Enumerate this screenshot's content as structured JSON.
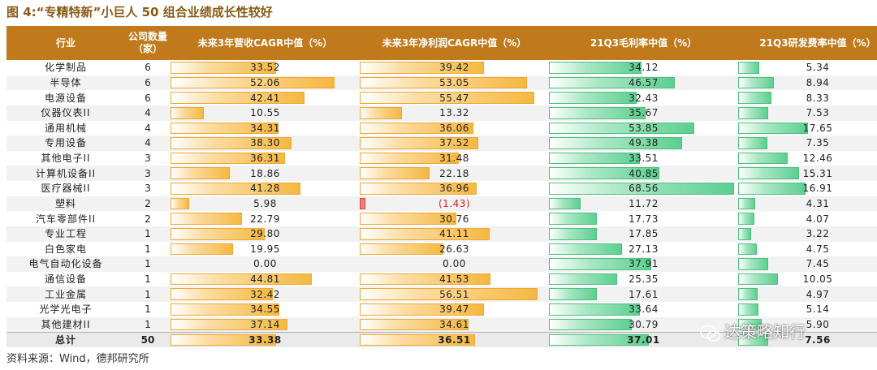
{
  "title": "图 4:“专精特新”小巨人 50 组合业绩成长性较好",
  "headers": [
    "行业",
    "公司数量\n（家）",
    "未来3年营收CAGR中值（%）",
    "未来3年净利润CAGR中值（%）",
    "21Q3毛利率中值（%）",
    "21Q3研发费率中值（%）"
  ],
  "rows": [
    {
      "industry": "化学制品",
      "count": "6",
      "rev": "33.52",
      "np": "39.42",
      "gm": "34.12",
      "rd": "5.34"
    },
    {
      "industry": "半导体",
      "count": "6",
      "rev": "52.06",
      "np": "53.05",
      "gm": "46.57",
      "rd": "8.94"
    },
    {
      "industry": "电源设备",
      "count": "6",
      "rev": "42.41",
      "np": "55.47",
      "gm": "32.43",
      "rd": "8.33"
    },
    {
      "industry": "仪器仪表II",
      "count": "4",
      "rev": "10.55",
      "np": "13.32",
      "gm": "35.67",
      "rd": "7.53"
    },
    {
      "industry": "通用机械",
      "count": "4",
      "rev": "34.31",
      "np": "36.06",
      "gm": "53.85",
      "rd": "17.65"
    },
    {
      "industry": "专用设备",
      "count": "4",
      "rev": "38.30",
      "np": "37.52",
      "gm": "49.38",
      "rd": "7.35"
    },
    {
      "industry": "其他电子II",
      "count": "3",
      "rev": "36.31",
      "np": "31.48",
      "gm": "33.51",
      "rd": "12.46"
    },
    {
      "industry": "计算机设备II",
      "count": "3",
      "rev": "18.86",
      "np": "22.18",
      "gm": "40.85",
      "rd": "15.31"
    },
    {
      "industry": "医疗器械II",
      "count": "3",
      "rev": "41.28",
      "np": "36.96",
      "gm": "68.56",
      "rd": "16.91"
    },
    {
      "industry": "塑料",
      "count": "2",
      "rev": "5.98",
      "np": "(1.43)",
      "gm": "11.72",
      "rd": "4.31"
    },
    {
      "industry": "汽车零部件II",
      "count": "2",
      "rev": "22.79",
      "np": "30.76",
      "gm": "17.73",
      "rd": "4.07"
    },
    {
      "industry": "专业工程",
      "count": "1",
      "rev": "29.80",
      "np": "41.11",
      "gm": "17.85",
      "rd": "3.22"
    },
    {
      "industry": "白色家电",
      "count": "1",
      "rev": "19.95",
      "np": "26.63",
      "gm": "27.13",
      "rd": "4.75"
    },
    {
      "industry": "电气自动化设备",
      "count": "1",
      "rev": "0.00",
      "np": "0.00",
      "gm": "37.91",
      "rd": "7.45"
    },
    {
      "industry": "通信设备",
      "count": "1",
      "rev": "44.81",
      "np": "41.53",
      "gm": "25.35",
      "rd": "10.05"
    },
    {
      "industry": "工业金属",
      "count": "1",
      "rev": "32.42",
      "np": "56.51",
      "gm": "17.61",
      "rd": "4.97"
    },
    {
      "industry": "光学光电子",
      "count": "1",
      "rev": "34.55",
      "np": "39.47",
      "gm": "33.64",
      "rd": "5.14"
    },
    {
      "industry": "其他建材II",
      "count": "1",
      "rev": "37.14",
      "np": "34.61",
      "gm": "30.79",
      "rd": "5.90"
    }
  ],
  "total": {
    "industry": "总计",
    "count": "50",
    "rev": "33.38",
    "np": "36.51",
    "gm": "37.01",
    "rd": "7.56"
  },
  "bar_max": {
    "rev": 60,
    "np": 60,
    "gm": 70,
    "rd": 40
  },
  "neg_marker_fraction": 0.03,
  "colors": {
    "header_bg": "#c07a1c",
    "orange_bar": "#f5b840",
    "green_bar": "#5ccf90",
    "negative_text": "#e02020",
    "title": "#8a5a16"
  },
  "watermark": {
    "text": "达策略知行",
    "icon": "wechat-icon"
  },
  "source": "资料来源：Wind，德邦研究所"
}
